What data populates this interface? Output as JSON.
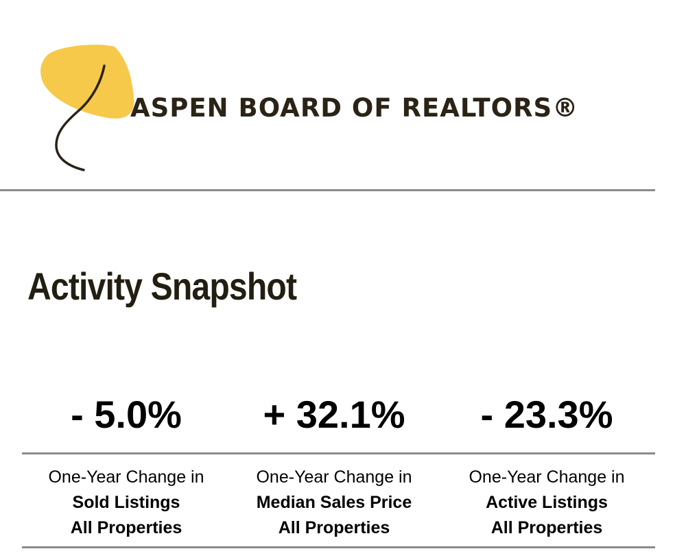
{
  "header": {
    "logo_text": "ASPEN BOARD OF REALTORS®",
    "leaf_color": "#f6c94a",
    "stem_color": "#2a2316"
  },
  "section": {
    "title": "Activity Snapshot"
  },
  "stats": [
    {
      "value": "- 5.0%",
      "caption_prefix": "One-Year Change in",
      "metric": "Sold Listings",
      "scope": "All Properties"
    },
    {
      "value": "+ 32.1%",
      "caption_prefix": "One-Year Change in",
      "metric": "Median Sales Price",
      "scope": "All Properties"
    },
    {
      "value": "- 23.3%",
      "caption_prefix": "One-Year Change in",
      "metric": "Active Listings",
      "scope": "All Properties"
    }
  ]
}
